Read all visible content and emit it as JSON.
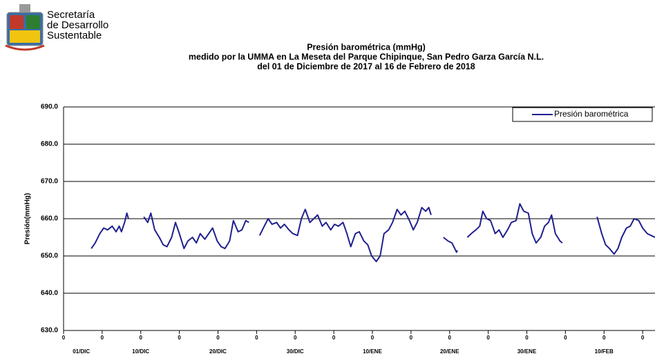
{
  "header": {
    "lines": [
      "Secretaría",
      "de Desarrollo",
      "Sustentable"
    ]
  },
  "chart_data": {
    "type": "line",
    "title": [
      "Presión barométrica (mmHg)",
      "medido por la UMMA en  La Meseta del Parque Chipinque, San Pedro Garza García N.L.",
      "del 01 de Diciembre  de 2017 al 16 de  Febrero de 2018"
    ],
    "y_label": "Presión(mmHg)",
    "xlim": [
      0,
      76.6
    ],
    "xticks": [
      {
        "value": 0,
        "label": "0"
      },
      {
        "value": 5,
        "label": "0"
      },
      {
        "value": 10,
        "label": "0"
      },
      {
        "value": 15,
        "label": "0"
      },
      {
        "value": 20,
        "label": "0"
      },
      {
        "value": 25,
        "label": "0"
      },
      {
        "value": 30,
        "label": "0"
      },
      {
        "value": 35,
        "label": "0"
      },
      {
        "value": 40,
        "label": "0"
      },
      {
        "value": 45,
        "label": "0"
      },
      {
        "value": 50,
        "label": "0"
      },
      {
        "value": 55,
        "label": "0"
      },
      {
        "value": 60,
        "label": "0"
      },
      {
        "value": 65,
        "label": "0"
      },
      {
        "value": 70,
        "label": "0"
      },
      {
        "value": 75,
        "label": "0"
      }
    ],
    "x_date_labels": [
      {
        "value": 2.3,
        "label": "01/DIC"
      },
      {
        "value": 10,
        "label": "10/DIC"
      },
      {
        "value": 20,
        "label": "20/DIC"
      },
      {
        "value": 30,
        "label": "30/DIC"
      },
      {
        "value": 40,
        "label": "10/ENE"
      },
      {
        "value": 50,
        "label": "20/ENE"
      },
      {
        "value": 60,
        "label": "30/ENE"
      },
      {
        "value": 70,
        "label": "10/FEB"
      }
    ],
    "ylim": [
      630,
      690
    ],
    "yticks": [
      {
        "value": 630,
        "label": "630.0"
      },
      {
        "value": 640,
        "label": "640.0"
      },
      {
        "value": 650,
        "label": "650.0"
      },
      {
        "value": 660,
        "label": "660.0"
      },
      {
        "value": 670,
        "label": "670.0"
      },
      {
        "value": 680,
        "label": "680.0"
      },
      {
        "value": 690,
        "label": "690.0"
      }
    ],
    "grid": true,
    "legend": "upper right",
    "x": [
      3.6,
      4.1,
      4.7,
      5.2,
      5.7,
      6.3,
      6.8,
      7.2,
      7.5,
      7.9,
      8.2,
      8.4,
      null,
      10.4,
      10.9,
      11.3,
      11.8,
      12.4,
      12.9,
      13.4,
      14.0,
      14.5,
      15.0,
      15.6,
      16.1,
      16.7,
      17.2,
      17.7,
      18.3,
      18.8,
      19.3,
      19.9,
      20.4,
      20.9,
      21.5,
      22.0,
      22.6,
      23.1,
      23.6,
      24.0,
      null,
      25.4,
      26.0,
      26.5,
      27.0,
      27.6,
      28.1,
      28.6,
      29.2,
      29.7,
      30.3,
      30.8,
      31.3,
      31.9,
      32.4,
      32.9,
      33.5,
      34.0,
      34.6,
      35.1,
      35.6,
      36.2,
      36.7,
      37.2,
      37.8,
      38.3,
      38.9,
      39.4,
      39.9,
      40.5,
      41.0,
      41.5,
      42.1,
      42.6,
      43.2,
      43.7,
      44.2,
      44.8,
      45.3,
      45.8,
      46.4,
      46.9,
      47.3,
      47.6,
      null,
      49.2,
      49.8,
      50.3,
      50.9,
      51.0,
      null,
      52.3,
      52.8,
      53.4,
      53.9,
      54.3,
      54.8,
      55.3,
      55.9,
      56.4,
      56.9,
      57.5,
      58.0,
      58.6,
      59.1,
      59.6,
      60.2,
      60.7,
      61.2,
      61.8,
      62.3,
      62.8,
      63.2,
      63.7,
      64.3,
      64.6,
      null,
      69.1,
      69.7,
      70.2,
      70.7,
      71.3,
      71.8,
      72.3,
      72.9,
      73.4,
      73.9,
      74.5,
      75.0,
      75.6,
      76.1,
      76.6
    ],
    "series": [
      {
        "name": "Presión barométrica",
        "color": "#1f1f8f",
        "values": [
          652,
          653.5,
          656,
          657.5,
          657,
          658,
          656.5,
          658,
          656.5,
          659,
          661.5,
          660,
          null,
          660.5,
          659,
          661.5,
          657,
          655,
          653,
          652.5,
          655,
          659,
          656,
          652,
          654,
          655,
          653.5,
          656,
          654.5,
          656,
          657.5,
          654,
          652.5,
          652,
          654,
          659.5,
          656.5,
          657,
          659.5,
          659,
          null,
          655.5,
          658,
          660,
          658.5,
          659,
          657.5,
          658.5,
          657,
          656,
          655.5,
          660,
          662.5,
          659,
          660,
          661,
          658,
          659,
          657,
          658.5,
          658,
          659,
          656,
          652.5,
          656,
          656.5,
          654,
          653,
          650,
          648.5,
          650,
          656,
          657,
          659,
          662.5,
          661,
          662,
          659.5,
          657,
          659,
          663,
          662,
          663,
          661,
          null,
          655,
          654,
          653.5,
          651,
          651.5,
          null,
          655,
          656,
          657,
          658,
          662,
          660,
          659.5,
          656,
          657,
          655,
          657,
          659,
          659.5,
          664,
          662,
          661.5,
          656,
          653.5,
          655,
          658,
          659,
          661,
          656,
          654,
          653.5,
          null,
          660.5,
          656,
          653,
          652,
          650.5,
          652,
          655,
          657.5,
          658,
          660,
          659.5,
          657.5,
          656,
          655.5,
          655
        ]
      }
    ]
  }
}
